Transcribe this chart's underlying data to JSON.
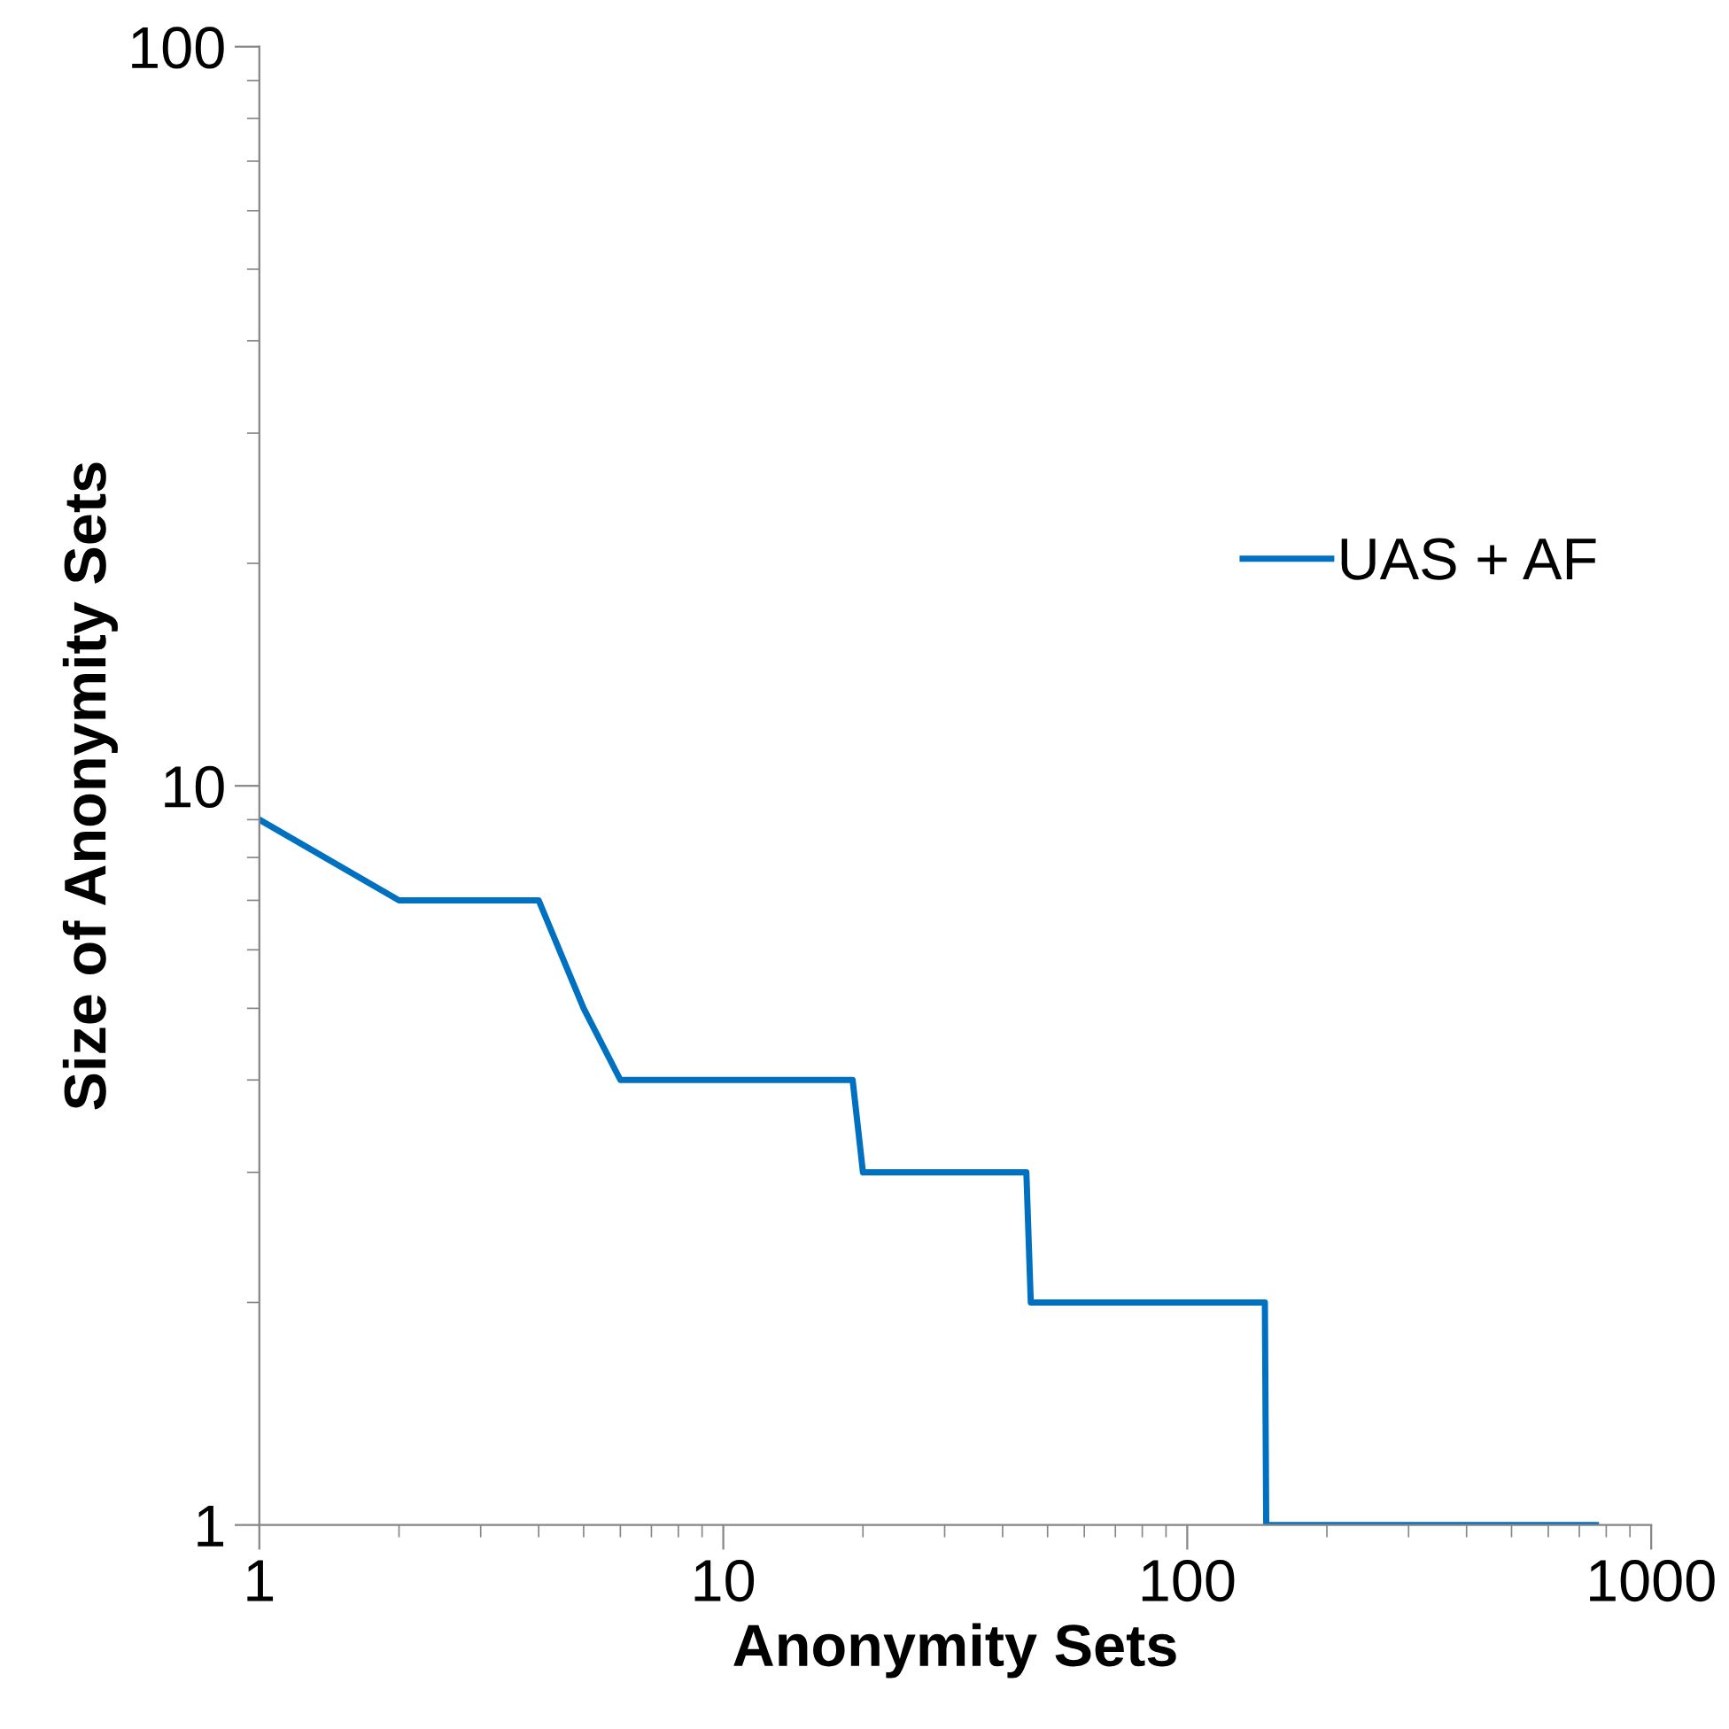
{
  "chart_data": {
    "type": "line",
    "xlabel": "Anonymity Sets",
    "ylabel": "Size of Anonymity Sets",
    "log": "xy",
    "xlim": [
      1,
      1000
    ],
    "xticks": [
      1,
      10,
      100,
      1000
    ],
    "ylim": [
      1,
      100
    ],
    "yticks": [
      1,
      10,
      100
    ],
    "grid": false,
    "legend": "right",
    "marker": "none",
    "line_style": "solid",
    "series": [
      {
        "name": "UAS + AF",
        "color": "#0070c0",
        "x": [
          1,
          2,
          4,
          5,
          6,
          19,
          20,
          45,
          46,
          147,
          148,
          760
        ],
        "values": [
          9,
          7,
          7,
          5,
          4,
          4,
          3,
          3,
          2,
          2,
          1,
          1
        ]
      }
    ]
  }
}
